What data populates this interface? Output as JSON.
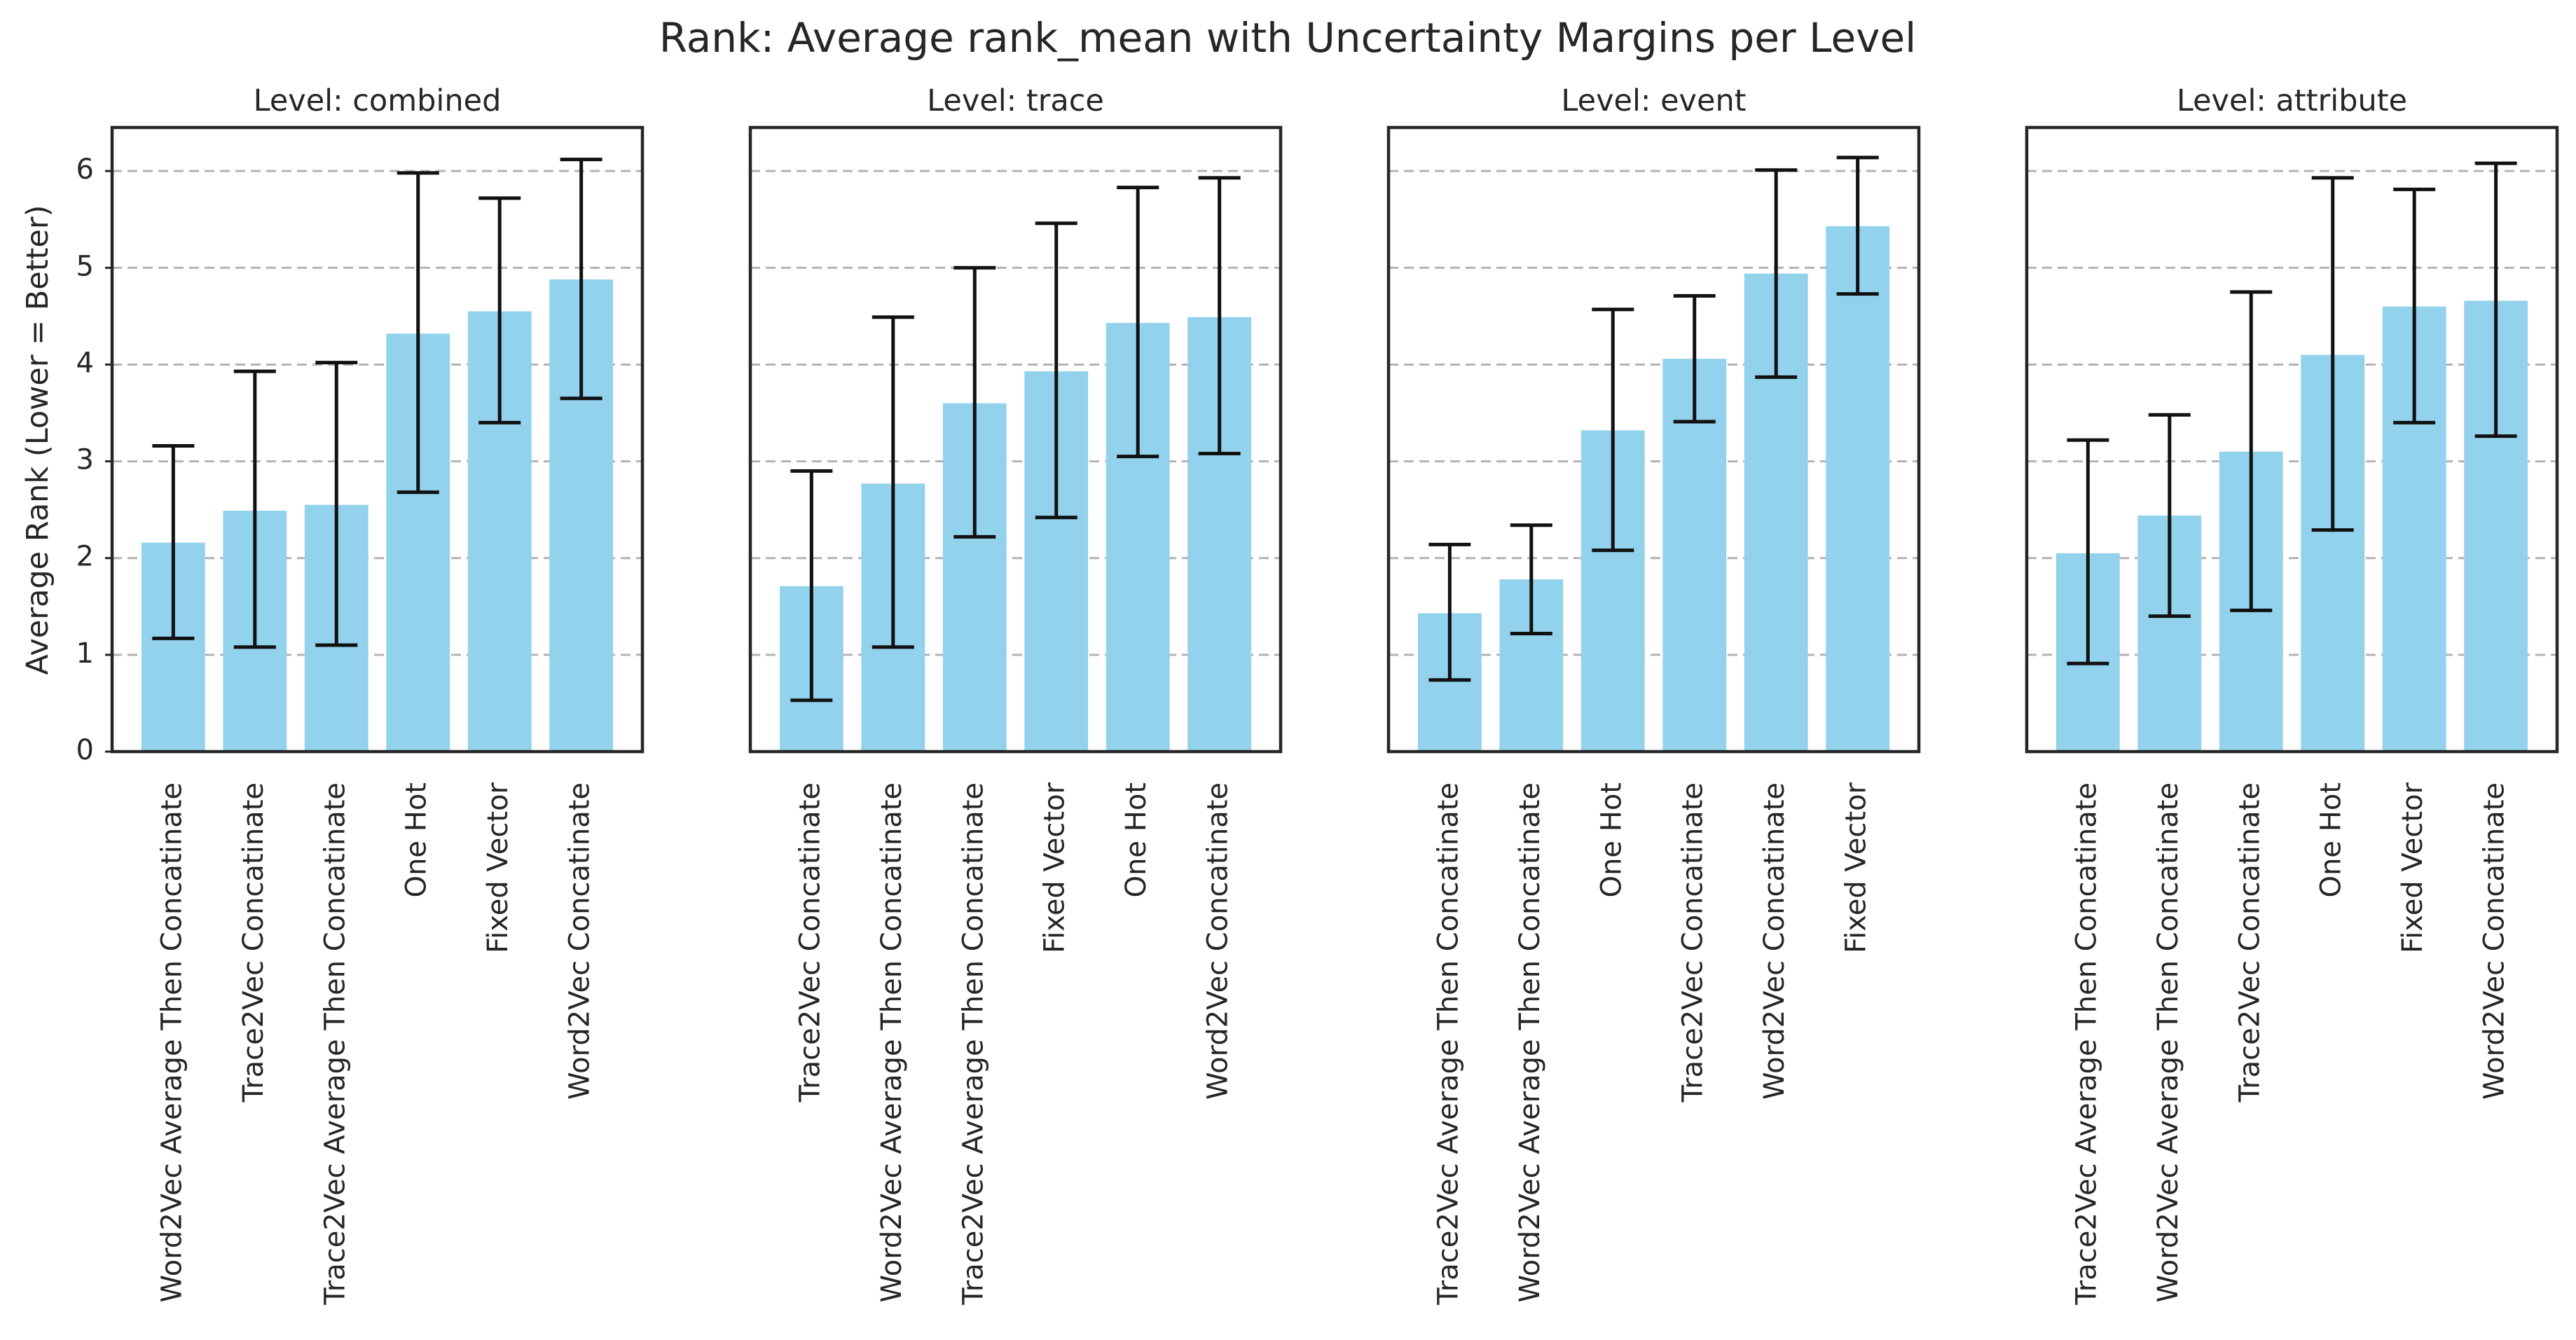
{
  "chart_data": {
    "type": "bar",
    "title": "Rank: Average rank_mean with Uncertainty Margins per Level",
    "ylabel": "Average Rank (Lower = Better)",
    "ylim": [
      0,
      6.45
    ],
    "yticks": [
      "0",
      "1",
      "2",
      "3",
      "4",
      "5",
      "6"
    ],
    "grid": "horizontal dashed",
    "colors": {
      "bar": "#92d2ec",
      "error": "#111111",
      "grid": "#b3b3b3"
    },
    "panels": [
      {
        "title": "Level: combined",
        "categories": [
          "Word2Vec Average Then Concatinate",
          "Trace2Vec Concatinate",
          "Trace2Vec Average Then Concatinate",
          "One Hot",
          "Fixed Vector",
          "Word2Vec Concatinate"
        ],
        "values": [
          2.16,
          2.49,
          2.55,
          4.32,
          4.55,
          4.88
        ],
        "err_low": [
          1.17,
          1.08,
          1.1,
          2.68,
          3.4,
          3.65
        ],
        "err_high": [
          3.16,
          3.93,
          4.02,
          5.98,
          5.72,
          6.12
        ]
      },
      {
        "title": "Level: trace",
        "categories": [
          "Trace2Vec Concatinate",
          "Word2Vec Average Then Concatinate",
          "Trace2Vec Average Then Concatinate",
          "Fixed Vector",
          "One Hot",
          "Word2Vec Concatinate"
        ],
        "values": [
          1.71,
          2.77,
          3.6,
          3.93,
          4.43,
          4.49
        ],
        "err_low": [
          0.53,
          1.08,
          2.22,
          2.42,
          3.05,
          3.08
        ],
        "err_high": [
          2.9,
          4.49,
          5.0,
          5.46,
          5.83,
          5.93
        ]
      },
      {
        "title": "Level: event",
        "categories": [
          "Trace2Vec Average Then Concatinate",
          "Word2Vec Average Then Concatinate",
          "One Hot",
          "Trace2Vec Concatinate",
          "Word2Vec Concatinate",
          "Fixed Vector"
        ],
        "values": [
          1.43,
          1.78,
          3.32,
          4.06,
          4.94,
          5.43
        ],
        "err_low": [
          0.74,
          1.22,
          2.08,
          3.41,
          3.87,
          4.73
        ],
        "err_high": [
          2.14,
          2.34,
          4.57,
          4.71,
          6.01,
          6.14
        ]
      },
      {
        "title": "Level: attribute",
        "categories": [
          "Trace2Vec Average Then Concatinate",
          "Word2Vec Average Then Concatinate",
          "Trace2Vec Concatinate",
          "One Hot",
          "Fixed Vector",
          "Word2Vec Concatinate"
        ],
        "values": [
          2.05,
          2.44,
          3.1,
          4.1,
          4.6,
          4.66
        ],
        "err_low": [
          0.91,
          1.4,
          1.46,
          2.29,
          3.4,
          3.26
        ],
        "err_high": [
          3.22,
          3.48,
          4.75,
          5.93,
          5.81,
          6.08
        ]
      }
    ]
  }
}
